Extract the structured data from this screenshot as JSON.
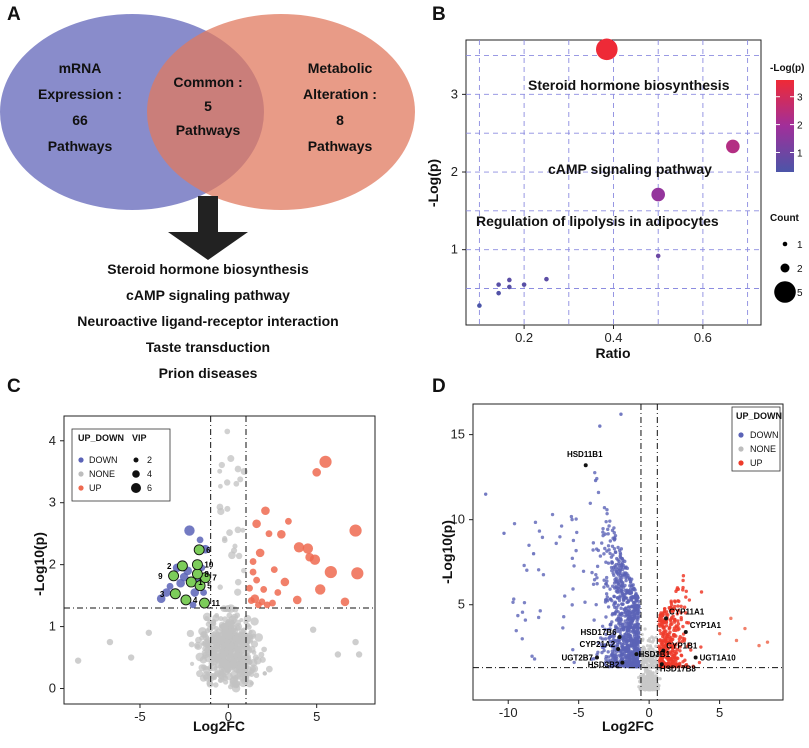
{
  "panels": {
    "a": "A",
    "b": "B",
    "c": "C",
    "d": "D"
  },
  "venn": {
    "left": [
      "mRNA",
      "Expression :",
      "66",
      "Pathways"
    ],
    "center": [
      "Common :",
      "5",
      "Pathways"
    ],
    "right": [
      "Metabolic",
      "Alteration :",
      "8",
      "Pathways"
    ],
    "colors": {
      "left": "#6f73c0",
      "right": "#e07a5f",
      "overlap": "#b45a6e"
    },
    "pathways": [
      "Steroid hormone biosynthesis",
      "cAMP signaling pathway",
      "Neuroactive ligand-receptor interaction",
      "Taste transduction",
      "Prion diseases"
    ]
  },
  "chart_data": [
    {
      "type": "scatter",
      "panel": "B",
      "xlabel": "Ratio",
      "ylabel": "-Log(p)",
      "xlim": [
        0.07,
        0.73
      ],
      "ylim": [
        0.03,
        3.7
      ],
      "xticks": [
        0.2,
        0.4,
        0.6
      ],
      "yticks": [
        1,
        2,
        3
      ],
      "points": [
        {
          "x": 0.385,
          "y": 3.58,
          "count": 5,
          "label": "Steroid hormone biosynthesis"
        },
        {
          "x": 0.667,
          "y": 2.33,
          "count": 3,
          "label": "cAMP signaling pathway"
        },
        {
          "x": 0.5,
          "y": 1.71,
          "count": 3,
          "label": "Regulation of lipolysis in adipocytes"
        },
        {
          "x": 0.5,
          "y": 0.92,
          "count": 1,
          "label": ""
        },
        {
          "x": 0.25,
          "y": 0.62,
          "count": 1,
          "label": ""
        },
        {
          "x": 0.2,
          "y": 0.55,
          "count": 1,
          "label": ""
        },
        {
          "x": 0.167,
          "y": 0.61,
          "count": 1,
          "label": ""
        },
        {
          "x": 0.167,
          "y": 0.52,
          "count": 1,
          "label": ""
        },
        {
          "x": 0.143,
          "y": 0.55,
          "count": 1,
          "label": ""
        },
        {
          "x": 0.143,
          "y": 0.44,
          "count": 1,
          "label": ""
        },
        {
          "x": 0.1,
          "y": 0.28,
          "count": 1,
          "label": ""
        }
      ],
      "color_legend": {
        "title": "-Log(p)",
        "ticks": [
          1,
          2,
          3
        ],
        "range": [
          0.3,
          3.6
        ],
        "low_color": "#4b55a8",
        "mid_color": "#a12f9a",
        "high_color": "#ef2a36"
      },
      "size_legend": {
        "title": "Count",
        "values": [
          1,
          2,
          5
        ]
      }
    },
    {
      "type": "scatter",
      "panel": "C",
      "xlabel": "Log2FC",
      "ylabel": "-Log10(p)",
      "xlim": [
        -9.3,
        8.3
      ],
      "ylim": [
        -0.25,
        4.4
      ],
      "xticks": [
        -5,
        0,
        5
      ],
      "yticks": [
        0,
        1,
        2,
        3,
        4
      ],
      "vlines": [
        -1,
        1
      ],
      "hline": 1.3,
      "legend": {
        "title": "UP_DOWN",
        "items": [
          "DOWN",
          "NONE",
          "UP"
        ],
        "colors": [
          "#5b63b7",
          "#bdbdbd",
          "#ee6a50"
        ],
        "size_title": "VIP",
        "sizes": [
          2,
          4,
          6
        ]
      },
      "highlighted": [
        {
          "label": "1",
          "x": -2.1,
          "y": 1.72
        },
        {
          "label": "2",
          "x": -2.6,
          "y": 1.98
        },
        {
          "label": "3",
          "x": -3.0,
          "y": 1.53
        },
        {
          "label": "4",
          "x": -2.4,
          "y": 1.43
        },
        {
          "label": "5",
          "x": -1.6,
          "y": 1.66
        },
        {
          "label": "6",
          "x": -1.65,
          "y": 2.24
        },
        {
          "label": "7",
          "x": -1.3,
          "y": 1.79
        },
        {
          "label": "8",
          "x": -1.75,
          "y": 1.85
        },
        {
          "label": "9",
          "x": -3.1,
          "y": 1.82
        },
        {
          "label": "10",
          "x": -1.75,
          "y": 2.0
        },
        {
          "label": "11",
          "x": -1.35,
          "y": 1.38
        }
      ],
      "up_points": [
        {
          "x": 5.5,
          "y": 3.66,
          "vip": 5
        },
        {
          "x": 5.0,
          "y": 3.49,
          "vip": 3
        },
        {
          "x": 7.2,
          "y": 2.55,
          "vip": 5
        },
        {
          "x": 4.0,
          "y": 2.28,
          "vip": 4
        },
        {
          "x": 4.5,
          "y": 2.26,
          "vip": 4
        },
        {
          "x": 4.6,
          "y": 2.12,
          "vip": 3
        },
        {
          "x": 3.0,
          "y": 2.49,
          "vip": 3
        },
        {
          "x": 4.9,
          "y": 2.08,
          "vip": 4
        },
        {
          "x": 5.8,
          "y": 1.88,
          "vip": 5
        },
        {
          "x": 7.3,
          "y": 1.86,
          "vip": 5
        },
        {
          "x": 5.2,
          "y": 1.6,
          "vip": 4
        },
        {
          "x": 2.1,
          "y": 2.87,
          "vip": 3
        },
        {
          "x": 3.4,
          "y": 2.7,
          "vip": 2
        },
        {
          "x": 1.6,
          "y": 2.66,
          "vip": 3
        },
        {
          "x": 2.3,
          "y": 2.5,
          "vip": 2
        },
        {
          "x": 1.8,
          "y": 2.19,
          "vip": 3
        },
        {
          "x": 1.4,
          "y": 1.88,
          "vip": 2
        },
        {
          "x": 2.6,
          "y": 1.92,
          "vip": 2
        },
        {
          "x": 3.2,
          "y": 1.72,
          "vip": 3
        },
        {
          "x": 2.0,
          "y": 1.6,
          "vip": 2
        },
        {
          "x": 1.5,
          "y": 1.45,
          "vip": 3
        },
        {
          "x": 1.9,
          "y": 1.4,
          "vip": 2
        },
        {
          "x": 3.9,
          "y": 1.43,
          "vip": 3
        },
        {
          "x": 2.5,
          "y": 1.38,
          "vip": 2
        },
        {
          "x": 1.2,
          "y": 1.62,
          "vip": 2
        },
        {
          "x": 6.6,
          "y": 1.4,
          "vip": 3
        },
        {
          "x": 2.8,
          "y": 1.55,
          "vip": 2
        },
        {
          "x": 1.7,
          "y": 1.35,
          "vip": 2
        },
        {
          "x": 1.3,
          "y": 1.42,
          "vip": 2
        },
        {
          "x": 2.2,
          "y": 1.35,
          "vip": 2
        },
        {
          "x": 1.4,
          "y": 2.05,
          "vip": 2
        },
        {
          "x": 1.6,
          "y": 1.75,
          "vip": 2
        }
      ],
      "down_points": [
        {
          "x": -2.2,
          "y": 2.55,
          "vip": 4
        },
        {
          "x": -1.3,
          "y": 2.25,
          "vip": 3
        },
        {
          "x": -3.5,
          "y": 1.55,
          "vip": 3
        },
        {
          "x": -3.8,
          "y": 1.45,
          "vip": 3
        },
        {
          "x": -2.7,
          "y": 1.7,
          "vip": 3
        },
        {
          "x": -1.9,
          "y": 1.55,
          "vip": 3
        },
        {
          "x": -2.3,
          "y": 1.9,
          "vip": 3
        },
        {
          "x": -1.5,
          "y": 1.95,
          "vip": 2
        },
        {
          "x": -2.9,
          "y": 1.95,
          "vip": 3
        },
        {
          "x": -2.0,
          "y": 1.35,
          "vip": 2
        },
        {
          "x": -1.4,
          "y": 1.55,
          "vip": 2
        },
        {
          "x": -2.5,
          "y": 1.8,
          "vip": 3
        },
        {
          "x": -3.3,
          "y": 1.65,
          "vip": 2
        },
        {
          "x": -1.8,
          "y": 1.75,
          "vip": 2
        },
        {
          "x": -1.6,
          "y": 2.4,
          "vip": 2
        }
      ]
    },
    {
      "type": "scatter",
      "panel": "D",
      "xlabel": "Log2FC",
      "ylabel": "-Log10(p)",
      "xlim": [
        -12.5,
        9.5
      ],
      "ylim": [
        -0.6,
        16.8
      ],
      "xticks": [
        -10,
        -5,
        0,
        5
      ],
      "yticks": [
        5,
        10,
        15
      ],
      "vlines": [
        -0.58,
        0.58
      ],
      "hline": 1.3,
      "legend": {
        "title": "UP_DOWN",
        "items": [
          "DOWN",
          "NONE",
          "UP"
        ],
        "colors": [
          "#5b63b7",
          "#bdbdbd",
          "#ee3b2a"
        ]
      },
      "labeled": [
        {
          "label": "HSD11B1",
          "x": -4.5,
          "y": 13.2
        },
        {
          "label": "CYP11A1",
          "x": 1.2,
          "y": 4.2
        },
        {
          "label": "CYP1A1",
          "x": 2.6,
          "y": 3.4
        },
        {
          "label": "HSD17B6",
          "x": -2.1,
          "y": 3.1
        },
        {
          "label": "CYP21A2",
          "x": -2.2,
          "y": 2.4
        },
        {
          "label": "HSD3B1",
          "x": -0.9,
          "y": 2.1
        },
        {
          "label": "CYP1B1",
          "x": 1.0,
          "y": 2.3
        },
        {
          "label": "UGT2B7",
          "x": -3.7,
          "y": 1.9
        },
        {
          "label": "HSD3B2",
          "x": -1.9,
          "y": 1.6
        },
        {
          "label": "UGT1A10",
          "x": 3.3,
          "y": 1.9
        },
        {
          "label": "HSD17B8",
          "x": 0.9,
          "y": 1.5
        }
      ]
    }
  ]
}
